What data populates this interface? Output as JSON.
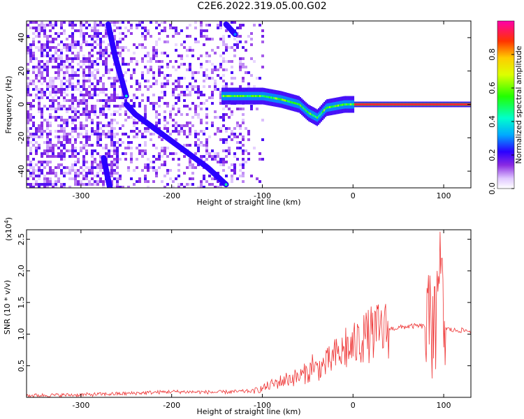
{
  "title": "C2E6.2022.319.05.00.G02",
  "chart_data": [
    {
      "type": "heatmap",
      "xlabel": "Height of straight line (km)",
      "ylabel": "Frequency (Hz)",
      "xlim": [
        -360,
        130
      ],
      "ylim": [
        -50,
        50
      ],
      "xticks": [
        -300,
        -200,
        -100,
        0,
        100
      ],
      "yticks": [
        -40,
        -20,
        0,
        20,
        40
      ],
      "colorbar": {
        "label": "Normalized spectral amplitude",
        "range": [
          0,
          1
        ],
        "ticks": [
          0.0,
          0.2,
          0.4,
          0.6,
          0.8
        ],
        "tick_labels": [
          "0.0",
          "0.2",
          "0.4",
          "0.6",
          "0.8"
        ]
      },
      "features": [
        {
          "kind": "line",
          "points": [
            [
              -270,
              48
            ],
            [
              -262,
              28
            ],
            [
              -250,
              5
            ]
          ],
          "amplitude": 0.4
        },
        {
          "kind": "line",
          "points": [
            [
              -250,
              0
            ],
            [
              -240,
              -6
            ],
            [
              -220,
              -14
            ],
            [
              -200,
              -22
            ],
            [
              -180,
              -30
            ],
            [
              -160,
              -38
            ],
            [
              -140,
              -48
            ]
          ],
          "amplitude": 0.45
        },
        {
          "kind": "line",
          "points": [
            [
              -140,
              48
            ],
            [
              -130,
              42
            ]
          ],
          "amplitude": 0.3
        },
        {
          "kind": "line",
          "points": [
            [
              -275,
              -32
            ],
            [
              -270,
              -45
            ],
            [
              -268,
              -50
            ]
          ],
          "amplitude": 0.2
        },
        {
          "kind": "band",
          "points": [
            [
              -145,
              5
            ],
            [
              -100,
              5
            ],
            [
              -80,
              3
            ],
            [
              -60,
              0
            ],
            [
              -50,
              -5
            ],
            [
              -40,
              -8
            ],
            [
              -30,
              -2
            ],
            [
              -10,
              0
            ],
            [
              0,
              0
            ],
            [
              130,
              0
            ]
          ],
          "amplitude": 0.55
        }
      ]
    },
    {
      "type": "line",
      "xlabel": "Height of straight line (km)",
      "ylabel": "SNR (10 * v/v)",
      "y_multiplier": "(x10",
      "y_multiplier_exp": "4",
      "xlim": [
        -360,
        130
      ],
      "ylim": [
        0,
        2.65
      ],
      "xticks": [
        -300,
        -200,
        -100,
        0,
        100
      ],
      "yticks": [
        0.5,
        1.0,
        1.5,
        2.0,
        2.5
      ],
      "ytick_labels": [
        "0.5",
        "1.0",
        "1.5",
        "2.0",
        "2.5"
      ],
      "series": [
        {
          "color": "#ee3333",
          "x": [
            -360,
            -300,
            -250,
            -200,
            -150,
            -110,
            -100,
            -90,
            -80,
            -70,
            -60,
            -50,
            -40,
            -30,
            -20,
            -10,
            0,
            10,
            20,
            30,
            40,
            50,
            60,
            70,
            80,
            85,
            90,
            95,
            100,
            110,
            120,
            130
          ],
          "y": [
            0.03,
            0.04,
            0.06,
            0.09,
            0.08,
            0.1,
            0.14,
            0.2,
            0.25,
            0.3,
            0.32,
            0.4,
            0.45,
            0.52,
            0.65,
            0.72,
            0.8,
            0.92,
            1.0,
            1.05,
            1.08,
            1.1,
            1.12,
            1.13,
            1.12,
            1.05,
            1.2,
            1.4,
            1.1,
            1.06,
            1.06,
            1.05
          ]
        }
      ],
      "spikes": [
        {
          "x": 93,
          "y": 2.0
        },
        {
          "x": 96,
          "y": 2.62
        },
        {
          "x": 90,
          "y": 1.75
        },
        {
          "x": 88,
          "y": 1.6
        },
        {
          "x": 98,
          "y": 2.2
        },
        {
          "x": 12,
          "y": 1.3
        },
        {
          "x": -8,
          "y": 1.1
        },
        {
          "x": -45,
          "y": 0.68
        }
      ]
    }
  ]
}
